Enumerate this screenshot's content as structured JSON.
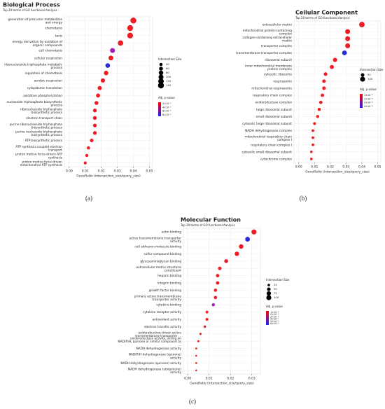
{
  "chart_data": [
    {
      "type": "dot",
      "title": "Biological Process",
      "subtitle": "Top 20 terms of GO functional Aanlysis",
      "xlabel": "GeneRatio (intersection_size/query_size)",
      "caption": "(a)",
      "grid": true,
      "categories": [
        "generation of precursor metabolites and energy",
        "chemotaxis",
        "taxis",
        "energy derivation by oxidation of organic compounds",
        "cell chemotaxis",
        "cellular respiration",
        "ribonucleoside triphosphate metabolic process",
        "regulation of chemotaxis",
        "aerobic respiration",
        "cytoplasmic translation",
        "oxidative phosphorylation",
        "nucleoside triphosphate biosynthetic process",
        "ribonucleoside triphosphate biosynthetic process",
        "electron transport chain",
        "purine ribonucleoside triphosphate biosynthetic process",
        "purine nucleoside triphosphate biosynthetic process",
        "ATP biosynthetic process",
        "ATP synthesis coupled electron transport",
        "proton motive force-driven ATP synthesis",
        "proton motive force-driven mitochondrial ATP synthesis"
      ],
      "values": [
        0.04,
        0.038,
        0.038,
        0.032,
        0.027,
        0.026,
        0.024,
        0.023,
        0.021,
        0.019,
        0.018,
        0.017,
        0.016,
        0.016,
        0.016,
        0.016,
        0.014,
        0.012,
        0.011,
        0.01
      ],
      "sizes": [
        140,
        133,
        133,
        112,
        95,
        91,
        84,
        80,
        74,
        67,
        63,
        60,
        56,
        56,
        56,
        56,
        49,
        42,
        39,
        35
      ],
      "colors": [
        "#ee1c25",
        "#ee1c25",
        "#ee1c25",
        "#ee1c25",
        "#a21fbe",
        "#ee1c25",
        "#2b2bd8",
        "#ee1c25",
        "#ee1c25",
        "#ee1c25",
        "#ee1c25",
        "#ee1c25",
        "#ee1c25",
        "#ee1c25",
        "#ee1c25",
        "#ee1c25",
        "#ee1c25",
        "#ee1c25",
        "#ee1c25",
        "#ee1c25"
      ],
      "xlim": [
        -0.003,
        0.052
      ],
      "xticks": [
        {
          "value": 0,
          "label": "0.00"
        },
        {
          "value": 0.01,
          "label": "0.01"
        },
        {
          "value": 0.02,
          "label": "0.02"
        },
        {
          "value": 0.03,
          "label": "0.03"
        },
        {
          "value": 0.04,
          "label": "0.04"
        },
        {
          "value": 0.05,
          "label": "0.05"
        }
      ],
      "size_legend": {
        "title": "Intersection Size",
        "values": [
          40,
          60,
          80,
          100,
          120,
          140
        ]
      },
      "color_legend": {
        "title": "Adj. p-value",
        "labels": [
          "2×10⁻⁵",
          "4×10⁻⁵",
          "6×10⁻⁵",
          "8×10⁻⁵"
        ],
        "colors": [
          "#ff0000",
          "#2020ff"
        ]
      }
    },
    {
      "type": "dot",
      "title": "Cellular Component",
      "subtitle": "Top 20 terms of GO functional Aanlysis",
      "xlabel": "GeneRatio (intersection_size/query_size)",
      "caption": "(b)",
      "grid": true,
      "categories": [
        "extracellular matrix",
        "mitochondrial protein-containing complex",
        "collagen-containing extracellular matrix",
        "transporter complex",
        "transmembrane transporter complex",
        "ribosomal subunit",
        "inner mitochondrial membrane protein complex",
        "cytosolic ribosome",
        "respirasome",
        "mitochondrial respirasome",
        "respiratory chain complex",
        "oxidoreductase complex",
        "large ribosomal subunit",
        "small ribosomal subunit",
        "cytosolic large ribosomal subunit",
        "NADH dehydrogenase complex",
        "mitochondrial respiratory chain complex I",
        "respiratory chain complex I",
        "cytosolic small ribosomal subunit",
        "cytochrome complex"
      ],
      "values": [
        0.04,
        0.031,
        0.031,
        0.031,
        0.029,
        0.023,
        0.021,
        0.017,
        0.016,
        0.016,
        0.015,
        0.014,
        0.013,
        0.012,
        0.01,
        0.009,
        0.009,
        0.009,
        0.008,
        0.008
      ],
      "sizes": [
        120,
        95,
        95,
        95,
        88,
        70,
        64,
        52,
        49,
        49,
        46,
        43,
        40,
        37,
        31,
        28,
        28,
        28,
        25,
        25
      ],
      "colors": [
        "#ee1c25",
        "#ee1c25",
        "#ee1c25",
        "#ee1c25",
        "#2b2bd8",
        "#ee1c25",
        "#ee1c25",
        "#ee1c25",
        "#ee1c25",
        "#ee1c25",
        "#ee1c25",
        "#ee1c25",
        "#ee1c25",
        "#ee1c25",
        "#ee1c25",
        "#ee1c25",
        "#ee1c25",
        "#ee1c25",
        "#ee1c25",
        "#ee1c25"
      ],
      "xlim": [
        -0.003,
        0.052
      ],
      "xticks": [
        {
          "value": 0,
          "label": "0.00"
        },
        {
          "value": 0.01,
          "label": "0.01"
        },
        {
          "value": 0.02,
          "label": "0.02"
        },
        {
          "value": 0.03,
          "label": "0.03"
        },
        {
          "value": 0.04,
          "label": "0.04"
        },
        {
          "value": 0.05,
          "label": "0.05"
        }
      ],
      "size_legend": {
        "title": "Intersection Size",
        "values": [
          50,
          100
        ]
      },
      "color_legend": {
        "title": "Adj. p-value",
        "labels": [
          "1×10⁻⁸",
          "2×10⁻⁸",
          "3×10⁻⁸",
          "4×10⁻⁸"
        ],
        "colors": [
          "#ff0000",
          "#2020ff"
        ]
      }
    },
    {
      "type": "dot",
      "title": "Molecular Function",
      "subtitle": "Top 20 terms of GO functional Aanlysis",
      "xlabel": "GeneRatio (intersection_size/query_size)",
      "caption": "(c)",
      "grid": true,
      "categories": [
        "actin binding",
        "active transmembrane transporter activity",
        "cell adhesion molecule binding",
        "sulfur compound binding",
        "glycosaminoglycan binding",
        "extracellular matrix structural constituent",
        "heparin binding",
        "integrin binding",
        "growth factor binding",
        "primary active transmembrane transporter activity",
        "cytokine binding",
        "cytokine receptor activity",
        "antioxidant activity",
        "electron transfer activity",
        "oxidoreduction-driven active transmembrane transporter ...",
        "oxidoreductase activity, acting on NAD(P)H, quinone or similar compound as ...",
        "NADH dehydrogenase activity",
        "NAD(P)H dehydrogenase (quinone) activity",
        "NADH dehydrogenase (quinone) activity",
        "NADH dehydrogenase (ubiquinone) activity"
      ],
      "values": [
        0.031,
        0.028,
        0.025,
        0.023,
        0.018,
        0.015,
        0.014,
        0.014,
        0.013,
        0.013,
        0.012,
        0.009,
        0.009,
        0.008,
        0.006,
        0.005,
        0.004,
        0.004,
        0.004,
        0.004
      ],
      "sizes": [
        100,
        90,
        80,
        74,
        58,
        48,
        45,
        45,
        42,
        42,
        39,
        29,
        29,
        26,
        19,
        16,
        13,
        13,
        13,
        13
      ],
      "colors": [
        "#ee1c25",
        "#2b2bd8",
        "#ee1c25",
        "#ee1c25",
        "#ee1c25",
        "#ee1c25",
        "#ee1c25",
        "#ee1c25",
        "#ee1c25",
        "#ee1c25",
        "#a21fbe",
        "#ee1c25",
        "#ee1c25",
        "#ee1c25",
        "#ee1c25",
        "#ee1c25",
        "#ee1c25",
        "#ee1c25",
        "#ee1c25",
        "#ee1c25"
      ],
      "xlim": [
        -0.002,
        0.034
      ],
      "xticks": [
        {
          "value": 0,
          "label": "0.00"
        },
        {
          "value": 0.01,
          "label": "0.01"
        },
        {
          "value": 0.02,
          "label": "0.02"
        },
        {
          "value": 0.03,
          "label": "0.03"
        }
      ],
      "size_legend": {
        "title": "Intersection Size",
        "values": [
          25,
          50,
          75,
          100
        ]
      },
      "color_legend": {
        "title": "Adj. p-value",
        "labels": [
          "1×10⁻⁶",
          "2×10⁻⁶",
          "3×10⁻⁶",
          "4×10⁻⁶",
          "5×10⁻⁶",
          "6×10⁻⁶"
        ],
        "colors": [
          "#ff0000",
          "#2020ff"
        ]
      }
    }
  ]
}
